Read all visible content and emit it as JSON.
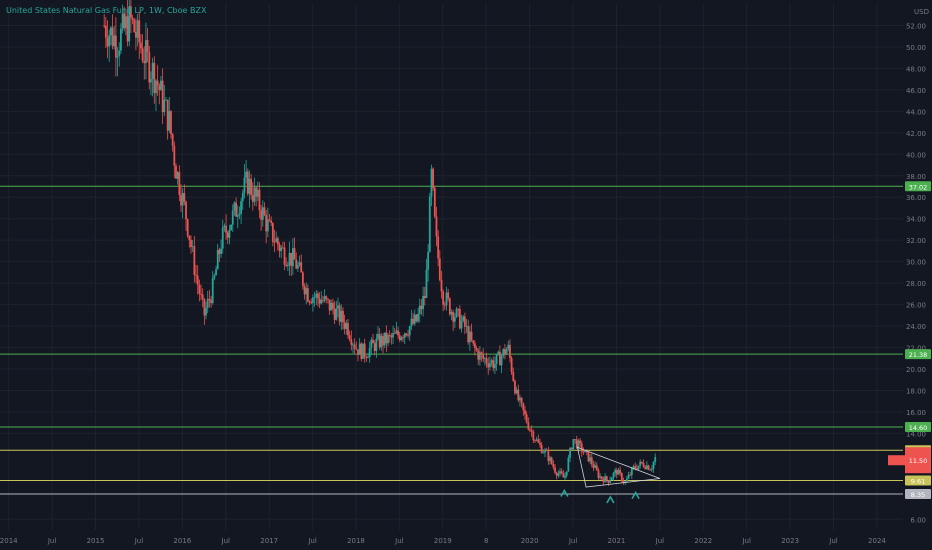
{
  "header": {
    "symbol_title": "United States Natural Gas Fund LP, 1W, Cboe BZX"
  },
  "price_axis": {
    "currency": "USD",
    "ticks": [
      "52.00",
      "50.00",
      "48.00",
      "46.00",
      "44.00",
      "42.00",
      "40.00",
      "38.00",
      "36.00",
      "34.00",
      "32.00",
      "30.00",
      "28.00",
      "26.00",
      "24.00",
      "22.00",
      "20.00",
      "18.00",
      "16.00",
      "14.00",
      "6.00"
    ]
  },
  "time_axis": {
    "ticks": [
      {
        "label": "2014",
        "t": 2014.0
      },
      {
        "label": "Jul",
        "t": 2014.5
      },
      {
        "label": "2015",
        "t": 2015.0
      },
      {
        "label": "Jul",
        "t": 2015.5
      },
      {
        "label": "2016",
        "t": 2016.0
      },
      {
        "label": "Jul",
        "t": 2016.5
      },
      {
        "label": "2017",
        "t": 2017.0
      },
      {
        "label": "Jul",
        "t": 2017.5
      },
      {
        "label": "2018",
        "t": 2018.0
      },
      {
        "label": "Jul",
        "t": 2018.5
      },
      {
        "label": "2019",
        "t": 2019.0
      },
      {
        "label": "8",
        "t": 2019.5
      },
      {
        "label": "2020",
        "t": 2020.0
      },
      {
        "label": "Jul",
        "t": 2020.5
      },
      {
        "label": "2021",
        "t": 2021.0
      },
      {
        "label": "Jul",
        "t": 2021.5
      },
      {
        "label": "2022",
        "t": 2022.0
      },
      {
        "label": "Jul",
        "t": 2022.5
      },
      {
        "label": "2023",
        "t": 2023.0
      },
      {
        "label": "Jul",
        "t": 2023.5
      },
      {
        "label": "2024",
        "t": 2024.0
      }
    ]
  },
  "colors": {
    "background": "#131722",
    "up": "#26a69a",
    "down": "#ef5350",
    "grid": "#1e222d",
    "axis_text": "#787b86",
    "title": "#26a69a",
    "level_line_green": "#4caf50",
    "level_line_yellow": "#c9c45a",
    "level_line_white": "#b2b5be",
    "triangle": "#d1d4dc",
    "last_price_tag": "#ef5350"
  },
  "chart_data": {
    "type": "candlestick",
    "title": "United States Natural Gas Fund LP, 1W, Cboe BZX",
    "ylabel": "USD",
    "ylim": [
      5.0,
      54.0
    ],
    "xlim": [
      2013.9,
      2024.3
    ],
    "grid": false,
    "price_path": [
      [
        2015.1,
        52.0
      ],
      [
        2015.25,
        50.5
      ],
      [
        2015.4,
        52.5
      ],
      [
        2015.55,
        49.5
      ],
      [
        2015.7,
        47.0
      ],
      [
        2015.85,
        43.0
      ],
      [
        2015.92,
        39.0
      ],
      [
        2016.05,
        34.0
      ],
      [
        2016.15,
        29.0
      ],
      [
        2016.25,
        25.0
      ],
      [
        2016.35,
        27.5
      ],
      [
        2016.45,
        32.0
      ],
      [
        2016.6,
        34.5
      ],
      [
        2016.75,
        37.5
      ],
      [
        2016.9,
        35.0
      ],
      [
        2017.0,
        33.0
      ],
      [
        2017.15,
        31.0
      ],
      [
        2017.3,
        30.0
      ],
      [
        2017.45,
        27.0
      ],
      [
        2017.6,
        26.5
      ],
      [
        2017.75,
        25.5
      ],
      [
        2017.9,
        24.0
      ],
      [
        2018.0,
        22.0
      ],
      [
        2018.1,
        21.5
      ],
      [
        2018.25,
        22.5
      ],
      [
        2018.4,
        22.8
      ],
      [
        2018.55,
        23.5
      ],
      [
        2018.7,
        24.5
      ],
      [
        2018.8,
        27.0
      ],
      [
        2018.87,
        38.0
      ],
      [
        2018.92,
        32.0
      ],
      [
        2019.0,
        27.0
      ],
      [
        2019.1,
        25.5
      ],
      [
        2019.25,
        24.0
      ],
      [
        2019.35,
        22.0
      ],
      [
        2019.45,
        21.0
      ],
      [
        2019.6,
        20.5
      ],
      [
        2019.75,
        22.0
      ],
      [
        2019.85,
        17.5
      ],
      [
        2020.0,
        14.5
      ],
      [
        2020.1,
        13.0
      ],
      [
        2020.2,
        12.0
      ],
      [
        2020.3,
        10.5
      ],
      [
        2020.4,
        9.8
      ],
      [
        2020.5,
        13.5
      ],
      [
        2020.6,
        12.5
      ],
      [
        2020.7,
        11.5
      ],
      [
        2020.8,
        10.0
      ],
      [
        2020.9,
        9.6
      ],
      [
        2021.0,
        10.5
      ],
      [
        2021.1,
        9.4
      ],
      [
        2021.2,
        10.8
      ],
      [
        2021.3,
        11.2
      ],
      [
        2021.4,
        10.8
      ],
      [
        2021.45,
        11.8
      ]
    ],
    "horizontal_levels": [
      {
        "price": 37.02,
        "label": "37.02",
        "color": "#4caf50"
      },
      {
        "price": 21.38,
        "label": "21.38",
        "color": "#4caf50"
      },
      {
        "price": 14.6,
        "label": "14.60",
        "color": "#4caf50"
      },
      {
        "price": 12.43,
        "label": "12.43",
        "color": "#c9c45a"
      },
      {
        "price": 9.61,
        "label": "9.61",
        "color": "#c9c45a"
      },
      {
        "price": 8.35,
        "label": "8.35",
        "color": "#b2b5be"
      }
    ],
    "last_price": {
      "price": 11.5,
      "label": "11.50"
    },
    "triangle_pattern": [
      [
        2020.55,
        12.7
      ],
      [
        2021.5,
        9.8
      ],
      [
        2020.65,
        9.0
      ]
    ],
    "markers": [
      {
        "t": 2020.4,
        "price": 8.4
      },
      {
        "t": 2020.93,
        "price": 7.8
      },
      {
        "t": 2021.22,
        "price": 8.2
      }
    ]
  }
}
